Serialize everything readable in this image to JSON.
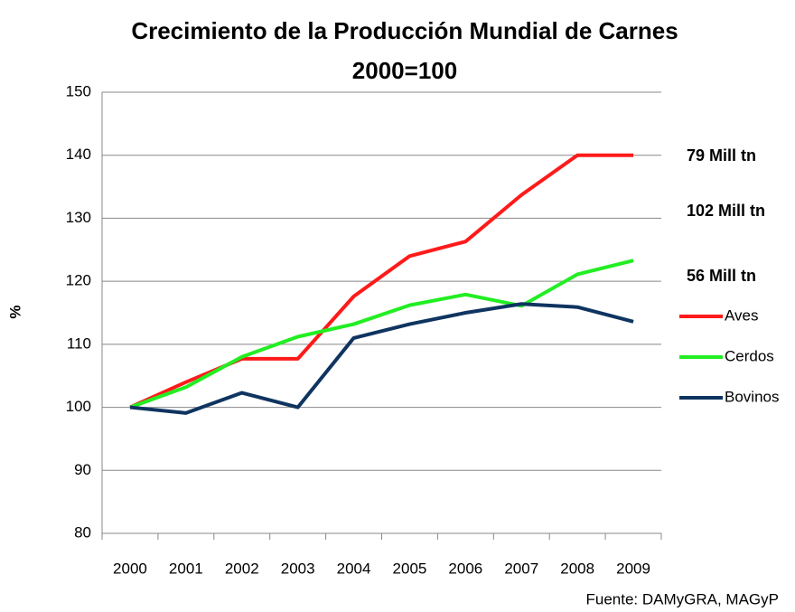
{
  "chart_data": {
    "type": "line",
    "title": "Crecimiento de la Producción Mundial de Carnes",
    "subtitle": "2000=100",
    "y_label": "%",
    "source": "Fuente: DAMyGRA, MAGyP",
    "categories": [
      "2000",
      "2001",
      "2002",
      "2003",
      "2004",
      "2005",
      "2006",
      "2007",
      "2008",
      "2009"
    ],
    "series": [
      {
        "name": "Aves",
        "color": "#ff1a1a",
        "values": [
          100,
          104,
          107.7,
          107.7,
          117.6,
          124,
          126.3,
          133.7,
          140,
          140
        ]
      },
      {
        "name": "Cerdos",
        "color": "#22ee22",
        "values": [
          100,
          103.2,
          108,
          111.2,
          113.2,
          116.2,
          117.9,
          116.1,
          121.1,
          123.3
        ]
      },
      {
        "name": "Bovinos",
        "color": "#0f3460",
        "values": [
          100,
          99.1,
          102.3,
          100,
          111,
          113.2,
          115,
          116.4,
          115.9,
          113.6
        ]
      }
    ],
    "annotations": [
      {
        "text": "79 Mill tn",
        "color": "#dd0000"
      },
      {
        "text": "102 Mill tn",
        "color": "#22ee22"
      },
      {
        "text": "56 Mill tn",
        "color": "#1a1a99"
      }
    ],
    "ylim": [
      80,
      150
    ],
    "yticks": [
      80,
      90,
      100,
      110,
      120,
      130,
      140,
      150
    ],
    "grid": true,
    "legend": "right"
  }
}
